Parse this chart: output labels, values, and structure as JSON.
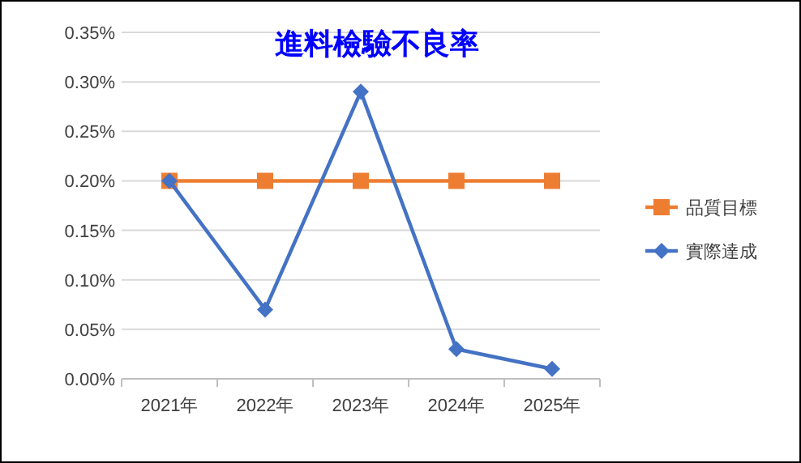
{
  "chart_data": {
    "type": "line",
    "title": "進料檢驗不良率",
    "categories": [
      "2021年",
      "2022年",
      "2023年",
      "2024年",
      "2025年"
    ],
    "series": [
      {
        "name": "品質目標",
        "color": "#ed7d31",
        "marker": "square",
        "values": [
          0.2,
          0.2,
          0.2,
          0.2,
          0.2
        ]
      },
      {
        "name": "實際達成",
        "color": "#4472c4",
        "marker": "diamond",
        "values": [
          0.2,
          0.07,
          0.29,
          0.03,
          0.01
        ]
      }
    ],
    "ylim": [
      0,
      0.35
    ],
    "yticks": [
      {
        "value": 0,
        "label": "0.00%"
      },
      {
        "value": 0.05,
        "label": "0.05%"
      },
      {
        "value": 0.1,
        "label": "0.10%"
      },
      {
        "value": 0.15,
        "label": "0.15%"
      },
      {
        "value": 0.2,
        "label": "0.20%"
      },
      {
        "value": 0.25,
        "label": "0.25%"
      },
      {
        "value": 0.3,
        "label": "0.30%"
      },
      {
        "value": 0.35,
        "label": "0.35%"
      }
    ],
    "grid": "y",
    "legend": "right",
    "line_style": "solid"
  }
}
